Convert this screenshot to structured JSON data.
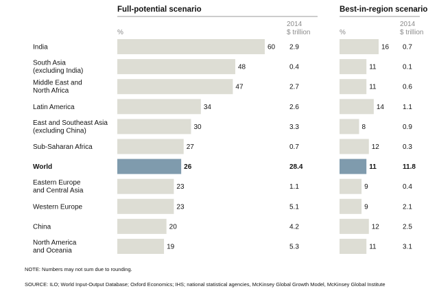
{
  "chart_data": {
    "type": "bar",
    "panels": [
      {
        "title": "Full-potential scenario",
        "value_header": "%",
        "amount_header": [
          "2014",
          "$ trillion"
        ],
        "xlim": [
          0,
          62
        ]
      },
      {
        "title": "Best-in-region scenario",
        "value_header": "%",
        "amount_header": [
          "2014",
          "$ trillion"
        ],
        "xlim": [
          0,
          20
        ]
      }
    ],
    "rows": [
      {
        "label": [
          "India"
        ],
        "full": 60,
        "full_amount": "2.9",
        "best": 16,
        "best_amount": "0.7",
        "highlight": false
      },
      {
        "label": [
          "South Asia",
          "(excluding India)"
        ],
        "full": 48,
        "full_amount": "0.4",
        "best": 11,
        "best_amount": "0.1",
        "highlight": false
      },
      {
        "label": [
          "Middle East and",
          "North Africa"
        ],
        "full": 47,
        "full_amount": "2.7",
        "best": 11,
        "best_amount": "0.6",
        "highlight": false
      },
      {
        "label": [
          "Latin America"
        ],
        "full": 34,
        "full_amount": "2.6",
        "best": 14,
        "best_amount": "1.1",
        "highlight": false
      },
      {
        "label": [
          "East and Southeast Asia",
          "(excluding China)"
        ],
        "full": 30,
        "full_amount": "3.3",
        "best": 8,
        "best_amount": "0.9",
        "highlight": false
      },
      {
        "label": [
          "Sub-Saharan Africa"
        ],
        "full": 27,
        "full_amount": "0.7",
        "best": 12,
        "best_amount": "0.3",
        "highlight": false
      },
      {
        "label": [
          "World"
        ],
        "full": 26,
        "full_amount": "28.4",
        "best": 11,
        "best_amount": "11.8",
        "highlight": true
      },
      {
        "label": [
          "Eastern Europe",
          "and Central Asia"
        ],
        "full": 23,
        "full_amount": "1.1",
        "best": 9,
        "best_amount": "0.4",
        "highlight": false
      },
      {
        "label": [
          "Western Europe"
        ],
        "full": 23,
        "full_amount": "5.1",
        "best": 9,
        "best_amount": "2.1",
        "highlight": false
      },
      {
        "label": [
          "China"
        ],
        "full": 20,
        "full_amount": "4.2",
        "best": 12,
        "best_amount": "2.5",
        "highlight": false
      },
      {
        "label": [
          "North America",
          "and Oceania"
        ],
        "full": 19,
        "full_amount": "5.3",
        "best": 11,
        "best_amount": "3.1",
        "highlight": false
      }
    ],
    "note": "NOTE: Numbers may not sum due to rounding.",
    "source": "SOURCE:  ILO; World Input-Output Database; Oxford Economics; IHS; national statistical agencies, McKinsey Global Growth Model, McKinsey Global Institute",
    "colors": {
      "bar": "#ddddd4",
      "bar_highlight": "#7f9bad",
      "title_rule": "#9a9a9a",
      "header_text": "#8a8a8a"
    }
  }
}
